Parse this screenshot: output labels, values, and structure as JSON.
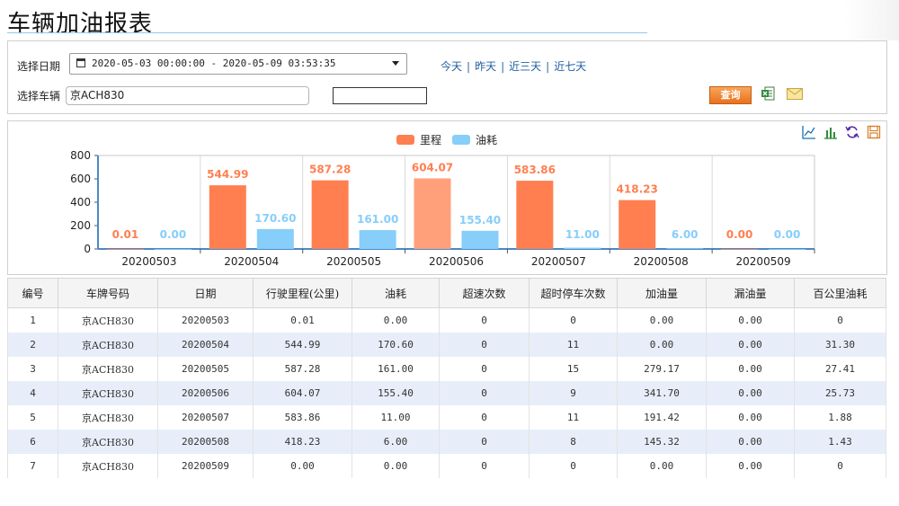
{
  "page": {
    "title": "车辆加油报表"
  },
  "filters": {
    "date_label": "选择日期",
    "date_range": "2020-05-03 00:00:00 - 2020-05-09 03:53:35",
    "vehicle_label": "选择车辆",
    "vehicle_value": "京ACH830",
    "quick_links": [
      "今天",
      "昨天",
      "近三天",
      "近七天"
    ],
    "query_button": "查询"
  },
  "legend": {
    "mileage": "里程",
    "fuel": "油耗"
  },
  "colors": {
    "mileage": "#ff7f50",
    "mileage_highlight": "#ffa07a",
    "fuel": "#87cefa",
    "link": "#1f5fa0",
    "accent_rule": "#8ec9e8"
  },
  "chart_data": {
    "type": "bar",
    "categories": [
      "20200503",
      "20200504",
      "20200505",
      "20200506",
      "20200507",
      "20200508",
      "20200509"
    ],
    "series": [
      {
        "name": "里程",
        "values": [
          0.01,
          544.99,
          587.28,
          604.07,
          583.86,
          418.23,
          0.0
        ]
      },
      {
        "name": "油耗",
        "values": [
          0.0,
          170.6,
          161.0,
          155.4,
          11.0,
          6.0,
          0.0
        ]
      }
    ],
    "value_labels": {
      "里程": [
        "0.01",
        "544.99",
        "587.28",
        "604.07",
        "583.86",
        "418.23",
        "0.00"
      ],
      "油耗": [
        "0.00",
        "170.60",
        "161.00",
        "155.40",
        "11.00",
        "6.00",
        "0.00"
      ]
    },
    "yticks": [
      "0",
      "200",
      "400",
      "600",
      "800"
    ],
    "ylim": [
      0,
      800
    ],
    "legend_position": "top-center",
    "grid": true
  },
  "table": {
    "headers": [
      "编号",
      "车牌号码",
      "日期",
      "行驶里程(公里)",
      "油耗",
      "超速次数",
      "超时停车次数",
      "加油量",
      "漏油量",
      "百公里油耗"
    ],
    "rows": [
      [
        "1",
        "京ACH830",
        "20200503",
        "0.01",
        "0.00",
        "0",
        "0",
        "0.00",
        "0.00",
        "0"
      ],
      [
        "2",
        "京ACH830",
        "20200504",
        "544.99",
        "170.60",
        "0",
        "11",
        "0.00",
        "0.00",
        "31.30"
      ],
      [
        "3",
        "京ACH830",
        "20200505",
        "587.28",
        "161.00",
        "0",
        "15",
        "279.17",
        "0.00",
        "27.41"
      ],
      [
        "4",
        "京ACH830",
        "20200506",
        "604.07",
        "155.40",
        "0",
        "9",
        "341.70",
        "0.00",
        "25.73"
      ],
      [
        "5",
        "京ACH830",
        "20200507",
        "583.86",
        "11.00",
        "0",
        "11",
        "191.42",
        "0.00",
        "1.88"
      ],
      [
        "6",
        "京ACH830",
        "20200508",
        "418.23",
        "6.00",
        "0",
        "8",
        "145.32",
        "0.00",
        "1.43"
      ],
      [
        "7",
        "京ACH830",
        "20200509",
        "0.00",
        "0.00",
        "0",
        "0",
        "0.00",
        "0.00",
        "0"
      ]
    ]
  }
}
